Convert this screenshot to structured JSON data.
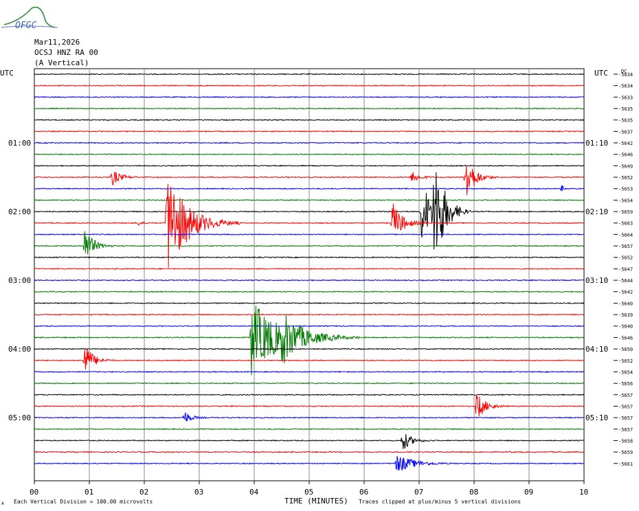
{
  "logo_text": "OFGC",
  "header": {
    "date": "Mar11,2026",
    "station": "OCSJ HNZ RA 00",
    "component": "(A Vertical)"
  },
  "left_time_header": "UTC",
  "right_time_header": "UTC",
  "dc_header": "DC",
  "footer": {
    "scale_note": "Each Vertical Division =  100.00 microvolts",
    "xlabel": "TIME (MINUTES)",
    "clip_note": "Traces clipped at plus/minus 5 vertical divisions",
    "corner_mark": "A"
  },
  "chart_data": {
    "type": "line",
    "title": "",
    "xlabel": "TIME (MINUTES)",
    "xlim": [
      0,
      10
    ],
    "x_ticks": [
      "00",
      "01",
      "02",
      "03",
      "04",
      "05",
      "06",
      "07",
      "08",
      "09",
      "10"
    ],
    "trace_colors": [
      "#000000",
      "#ff0000",
      "#0000ff",
      "#007a00"
    ],
    "left_time_labels": [
      {
        "trace": 6,
        "label": "01:00"
      },
      {
        "trace": 12,
        "label": "02:00"
      },
      {
        "trace": 18,
        "label": "03:00"
      },
      {
        "trace": 24,
        "label": "04:00"
      },
      {
        "trace": 30,
        "label": "05:00"
      }
    ],
    "right_time_labels": [
      {
        "trace": 6,
        "label": "01:10"
      },
      {
        "trace": 12,
        "label": "02:10"
      },
      {
        "trace": 18,
        "label": "03:10"
      },
      {
        "trace": 24,
        "label": "04:10"
      },
      {
        "trace": 30,
        "label": "05:10"
      }
    ],
    "dc_offsets": [
      "-5634",
      "-5634",
      "-5633",
      "-5635",
      "-5635",
      "-5637",
      "-5642",
      "-5646",
      "-5649",
      "-5652",
      "-5653",
      "-5654",
      "-5659",
      "-5663",
      "-5664",
      "-5657",
      "-5652",
      "-5647",
      "-5644",
      "-5642",
      "-5640",
      "-5639",
      "-5640",
      "-5646",
      "-5650",
      "-5652",
      "-5654",
      "-5656",
      "-5657",
      "-5657",
      "-5657",
      "-5657",
      "-5658",
      "-5659",
      "-5661"
    ],
    "events": [
      {
        "trace": 9,
        "minute": 1.42,
        "amplitude": 12,
        "duration": 0.25
      },
      {
        "trace": 13,
        "minute": 2.42,
        "amplitude": 80,
        "duration": 0.6
      },
      {
        "trace": 13,
        "minute": 1.9,
        "amplitude": 4,
        "duration": 0.1
      },
      {
        "trace": 15,
        "minute": 0.92,
        "amplitude": 28,
        "duration": 0.25
      },
      {
        "trace": 9,
        "minute": 6.88,
        "amplitude": 10,
        "duration": 0.2
      },
      {
        "trace": 9,
        "minute": 7.85,
        "amplitude": 40,
        "duration": 0.25
      },
      {
        "trace": 12,
        "minute": 7.05,
        "amplitude": 45,
        "duration": 0.35
      },
      {
        "trace": 12,
        "minute": 7.28,
        "amplitude": 80,
        "duration": 0.3
      },
      {
        "trace": 13,
        "minute": 6.52,
        "amplitude": 30,
        "duration": 0.3
      },
      {
        "trace": 23,
        "minute": 3.95,
        "amplitude": 55,
        "duration": 0.9
      },
      {
        "trace": 23,
        "minute": 4.5,
        "amplitude": 25,
        "duration": 0.5
      },
      {
        "trace": 25,
        "minute": 0.92,
        "amplitude": 25,
        "duration": 0.25
      },
      {
        "trace": 29,
        "minute": 8.05,
        "amplitude": 22,
        "duration": 0.25
      },
      {
        "trace": 30,
        "minute": 2.73,
        "amplitude": 10,
        "duration": 0.2
      },
      {
        "trace": 32,
        "minute": 6.7,
        "amplitude": 15,
        "duration": 0.25
      },
      {
        "trace": 34,
        "minute": 6.6,
        "amplitude": 14,
        "duration": 0.5
      },
      {
        "trace": 10,
        "minute": 9.6,
        "amplitude": 5,
        "duration": 0.05
      }
    ]
  }
}
